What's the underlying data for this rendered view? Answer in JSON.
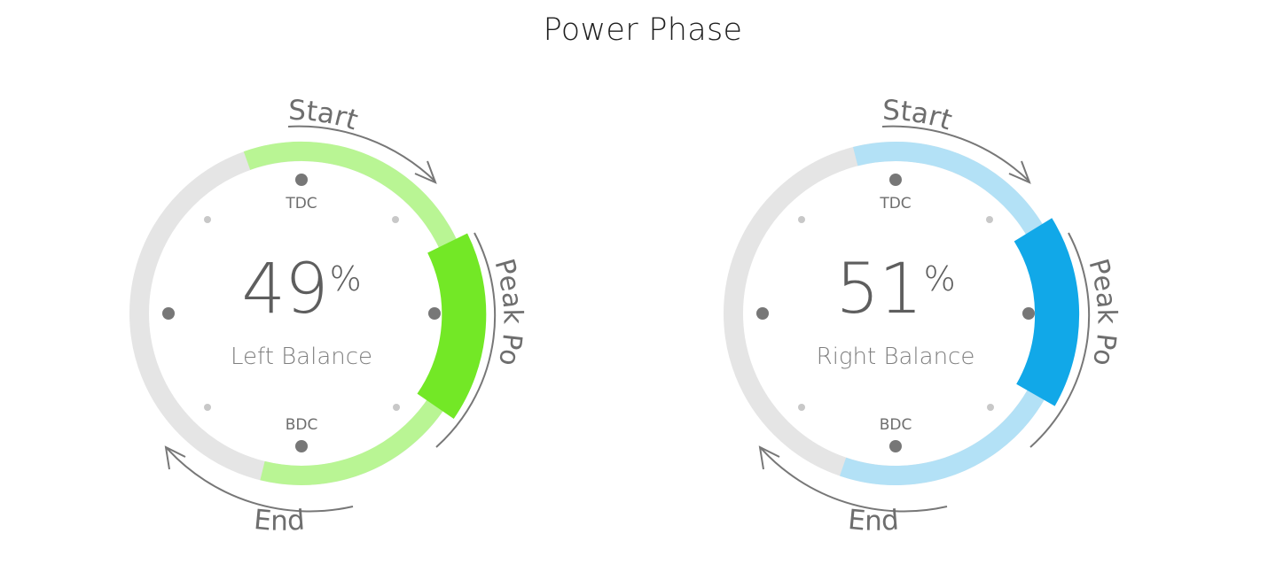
{
  "title": "Power Phase",
  "dials": [
    {
      "side": "left",
      "percent": "49",
      "unit": "%",
      "label": "Left Balance",
      "tdc": "TDC",
      "bdc": "BDC",
      "start": "Start",
      "end": "End",
      "peak": "Peak Power",
      "colors": {
        "phase": "#b9f594",
        "peak": "#73e826",
        "track": "#e5e5e5"
      }
    },
    {
      "side": "right",
      "percent": "51",
      "unit": "%",
      "label": "Right Balance",
      "tdc": "TDC",
      "bdc": "BDC",
      "start": "Start",
      "end": "End",
      "peak": "Peak Power",
      "colors": {
        "phase": "#b3e1f6",
        "peak": "#11a8e8",
        "track": "#e5e5e5"
      }
    }
  ]
}
